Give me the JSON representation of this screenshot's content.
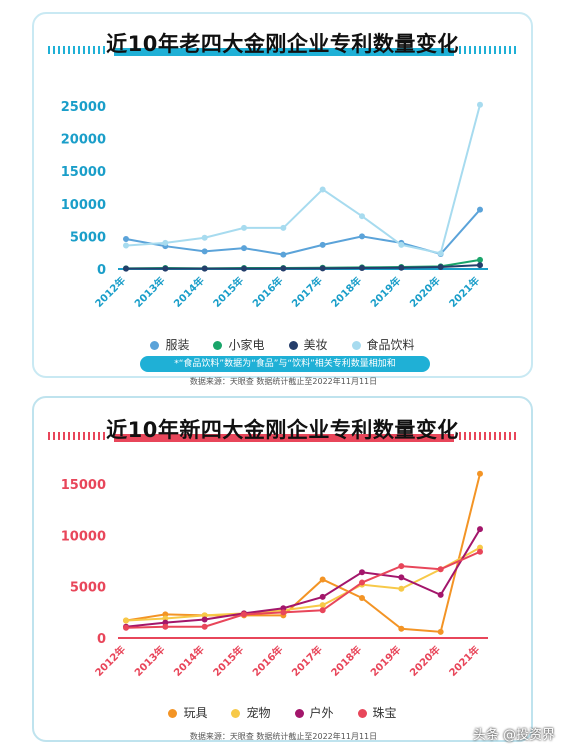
{
  "chart_data": [
    {
      "type": "line",
      "title": "近10年老四大金刚企业专利数量变化",
      "categories": [
        "2012年",
        "2013年",
        "2014年",
        "2015年",
        "2016年",
        "2017年",
        "2018年",
        "2019年",
        "2020年",
        "2021年"
      ],
      "ylim": [
        0,
        25000
      ],
      "yticks": [
        0,
        5000,
        10000,
        15000,
        20000,
        25000
      ],
      "grid": false,
      "legend_position": "bottom",
      "series": [
        {
          "name": "服装",
          "color": "#5ba3d9",
          "values": [
            4600,
            3500,
            2700,
            3200,
            2200,
            3700,
            5000,
            4000,
            2300,
            9100
          ]
        },
        {
          "name": "小家电",
          "color": "#1aa56a",
          "values": [
            100,
            150,
            100,
            150,
            150,
            200,
            250,
            300,
            400,
            1400
          ]
        },
        {
          "name": "美妆",
          "color": "#253e6b",
          "values": [
            50,
            50,
            50,
            50,
            80,
            100,
            150,
            200,
            300,
            600
          ]
        },
        {
          "name": "食品饮料",
          "color": "#a7dbef",
          "values": [
            3600,
            4000,
            4800,
            6300,
            6300,
            12200,
            8100,
            3700,
            2400,
            25200
          ]
        }
      ],
      "note": "*“食品饮料”数据为“食品”与“饮料”相关专利数量相加和",
      "source": "数据来源：天眼查 数据统计截止至2022年11月11日"
    },
    {
      "type": "line",
      "title": "近10年新四大金刚企业专利数量变化",
      "categories": [
        "2012年",
        "2013年",
        "2014年",
        "2015年",
        "2016年",
        "2017年",
        "2018年",
        "2019年",
        "2020年",
        "2021年"
      ],
      "ylim": [
        0,
        15000
      ],
      "yticks": [
        0,
        5000,
        10000,
        15000
      ],
      "grid": false,
      "legend_position": "bottom",
      "series": [
        {
          "name": "玩具",
          "color": "#f39425",
          "values": [
            1700,
            2300,
            2200,
            2200,
            2200,
            5700,
            3900,
            900,
            600,
            16000
          ]
        },
        {
          "name": "宠物",
          "color": "#f7c948",
          "values": [
            1700,
            1900,
            2200,
            2400,
            2700,
            3200,
            5200,
            4800,
            6700,
            8800
          ]
        },
        {
          "name": "户外",
          "color": "#a3166b",
          "values": [
            1100,
            1500,
            1800,
            2400,
            2900,
            4000,
            6400,
            5900,
            4200,
            10600
          ]
        },
        {
          "name": "珠宝",
          "color": "#e8465a",
          "values": [
            1000,
            1100,
            1100,
            2300,
            2500,
            2700,
            5400,
            7000,
            6700,
            8400
          ]
        }
      ],
      "source": "数据来源：天眼查 数据统计截止至2022年11月11日"
    }
  ],
  "watermark": "头条 @投资界",
  "colors": {
    "accent1": "#1fb0d6",
    "accent2": "#e8465a",
    "axis1": "#1a9ec9",
    "axis2": "#e8465a"
  }
}
